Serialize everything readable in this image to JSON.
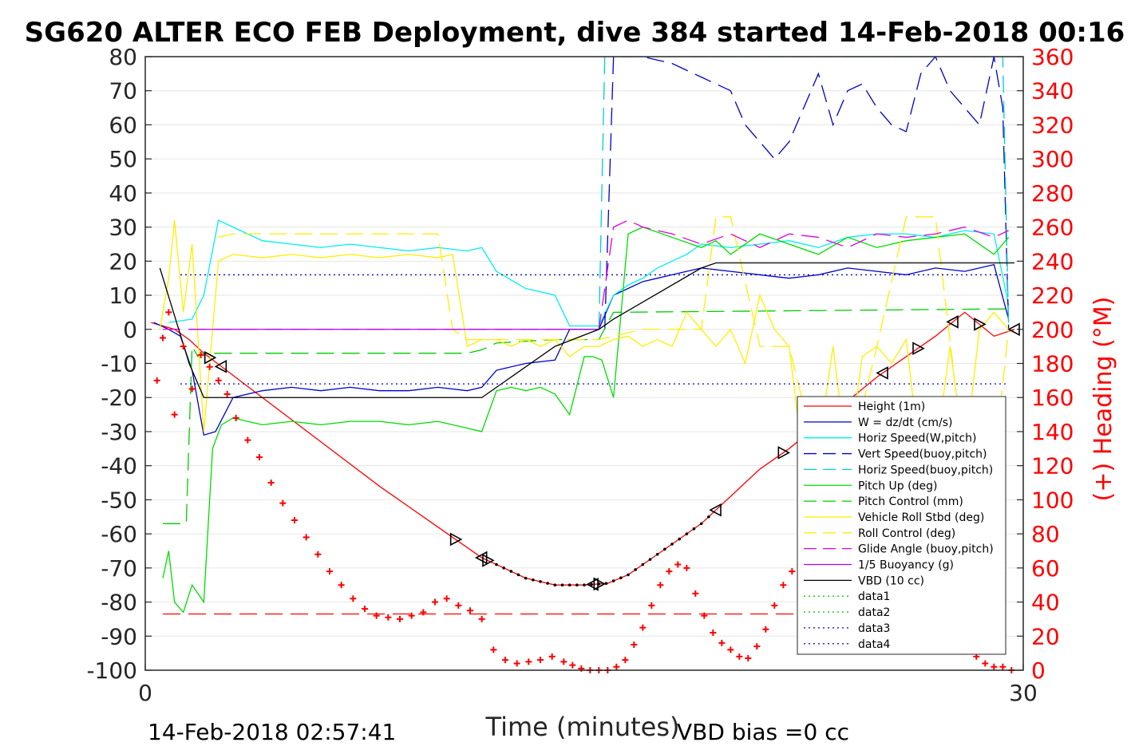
{
  "chart_data": {
    "type": "line",
    "title": "SG620 ALTER ECO FEB Deployment, dive 384 started 14-Feb-2018 00:16",
    "xlabel": "Time (minutes)",
    "ylabel_left": "",
    "ylabel_right": "(+) Heading (°M)",
    "xlim": [
      0,
      30
    ],
    "ylim_left": [
      -100,
      80
    ],
    "ylim_right": [
      0,
      360
    ],
    "x_ticks": [
      "0",
      "30"
    ],
    "y_left_ticks": [
      "80",
      "70",
      "60",
      "50",
      "40",
      "30",
      "20",
      "10",
      "0",
      "-10",
      "-20",
      "-30",
      "-40",
      "-50",
      "-60",
      "-70",
      "-80",
      "-90",
      "-100"
    ],
    "y_right_ticks": [
      "360",
      "340",
      "320",
      "300",
      "280",
      "260",
      "240",
      "220",
      "200",
      "180",
      "160",
      "140",
      "120",
      "100",
      "80",
      "60",
      "40",
      "20",
      "0"
    ],
    "grid": true,
    "legend_position": "lower-right",
    "footer_left": "14-Feb-2018 02:57:41",
    "footer_right": "VBD bias =0 cc",
    "series": [
      {
        "name": "Height (1m)",
        "color": "#ff0000",
        "style": "solid",
        "x": [
          0.2,
          1.0,
          1.5,
          2.0,
          4,
          6,
          8,
          10,
          11.5,
          13,
          14,
          15,
          15.8,
          16.5,
          17.5,
          19,
          20,
          21,
          22,
          23,
          24,
          25,
          26,
          27,
          28,
          29,
          29.7
        ],
        "y": [
          2,
          0,
          -3,
          -7,
          -20,
          -33,
          -46,
          -58,
          -67,
          -73,
          -75,
          -75,
          -74.5,
          -72,
          -66,
          -57,
          -49,
          -41,
          -35,
          -28,
          -21,
          -14,
          -8,
          -2,
          5,
          -2,
          0
        ]
      },
      {
        "name": "W = dz/dt (cm/s)",
        "color": "#0000cc",
        "style": "solid",
        "x": [
          0.3,
          0.8,
          1.2,
          1.6,
          2,
          2.4,
          3,
          4,
          5,
          6,
          7,
          8,
          9,
          10,
          11,
          11.5,
          12,
          13,
          14,
          14.5,
          15,
          15.5,
          16,
          16.5,
          17,
          17.5,
          18,
          18.5,
          19,
          20,
          21,
          22,
          23,
          24,
          25,
          26,
          27,
          28,
          29,
          29.5
        ],
        "y": [
          2,
          0,
          -2,
          -12,
          -31,
          -30,
          -20,
          -18,
          -17,
          -18,
          -17,
          -18,
          -18,
          -17,
          -18,
          -17,
          -12,
          -10,
          -9,
          0,
          0,
          0,
          10,
          12,
          14,
          15,
          16,
          17,
          18,
          17,
          16,
          15,
          16,
          18,
          17,
          16,
          18,
          17,
          19,
          3
        ]
      },
      {
        "name": "Horiz Speed(W,pitch)",
        "color": "#00eeee",
        "style": "solid",
        "x": [
          0.8,
          1.6,
          2,
          2.5,
          3,
          4,
          5,
          6,
          7,
          8,
          9,
          10,
          11,
          11.5,
          12,
          13,
          14,
          14.5,
          15,
          15.5,
          16,
          16.5,
          17,
          17.5,
          18,
          18.5,
          19,
          20,
          21,
          22,
          23,
          24,
          25,
          26,
          27,
          28,
          29,
          29.5
        ],
        "y": [
          2,
          3,
          10,
          32,
          30,
          26,
          25,
          24,
          25,
          24,
          23,
          24,
          23,
          24,
          17,
          12,
          10,
          1,
          1,
          1,
          10,
          13,
          15,
          18,
          20,
          22,
          25,
          24,
          25,
          26,
          24,
          27,
          28,
          28,
          27,
          29,
          28,
          7
        ]
      },
      {
        "name": "Vert Speed(buoy,pitch)",
        "color": "#0000cc",
        "style": "dashed",
        "x": [
          15.7,
          16,
          16.5,
          17,
          18,
          19,
          20,
          20.5,
          21,
          21.5,
          22,
          22.5,
          23,
          23.5,
          24,
          24.5,
          25,
          25.5,
          26,
          26.5,
          27,
          27.5,
          28,
          28.5,
          29,
          29.3,
          29.5
        ],
        "y": [
          0,
          80,
          80,
          80,
          78,
          74,
          70,
          60,
          55,
          50,
          55,
          65,
          75,
          60,
          70,
          72,
          65,
          60,
          58,
          75,
          80,
          70,
          65,
          60,
          80,
          65,
          0
        ]
      },
      {
        "name": "Horiz Speed(buoy,pitch)",
        "color": "#00cccc",
        "style": "dashed",
        "x": [
          15.5,
          15.7,
          16,
          29.3,
          29.5
        ],
        "y": [
          0,
          80,
          80,
          80,
          0
        ]
      },
      {
        "name": "Pitch Up (deg)",
        "color": "#00dd00",
        "style": "solid",
        "x": [
          0.6,
          0.8,
          1,
          1.3,
          1.6,
          2,
          2.3,
          2.6,
          3,
          4,
          5,
          6,
          7,
          8,
          9,
          10,
          11,
          11.5,
          12,
          12.5,
          13,
          13.5,
          14,
          14.5,
          15,
          15.3,
          15.6,
          16,
          16.5,
          17,
          18,
          19,
          19.5,
          20,
          21,
          22,
          23,
          24,
          25,
          26,
          27,
          28,
          29,
          29.5
        ],
        "y": [
          -73,
          -65,
          -80,
          -83,
          -75,
          -80,
          -35,
          -28,
          -26,
          -28,
          -27,
          -28,
          -27,
          -27,
          -28,
          -27,
          -29,
          -30,
          -18,
          -17,
          -18,
          -17,
          -19,
          -25,
          -8,
          -8,
          -9,
          -20,
          28,
          30,
          27,
          24,
          26,
          22,
          28,
          25,
          22,
          27,
          24,
          26,
          27,
          28,
          22,
          27
        ]
      },
      {
        "name": "Pitch Control (mm)",
        "color": "#00cc00",
        "style": "dashed",
        "x": [
          0.6,
          1.4,
          1.6,
          1.8,
          2,
          2.2,
          5,
          7,
          10,
          11,
          11.5,
          12,
          14,
          15.5,
          16,
          29.5
        ],
        "y": [
          -57,
          -57,
          -5,
          -8,
          -7,
          -7,
          -7,
          -7,
          -7,
          -7,
          -6,
          -4,
          -3,
          -3,
          5,
          6
        ]
      },
      {
        "name": "Vehicle Roll Stbd (deg)",
        "color": "#ffee00",
        "style": "solid",
        "x": [
          0.5,
          0.8,
          1,
          1.3,
          1.6,
          2,
          2.5,
          3,
          4,
          5,
          6,
          7,
          8,
          9,
          10,
          10.5,
          11,
          11.5,
          12,
          12.5,
          13,
          13.5,
          14,
          14.5,
          15,
          15.5,
          16,
          16.5,
          17,
          17.5,
          18,
          18.5,
          19,
          19.5,
          20,
          20.5,
          21,
          21.5,
          22,
          22.5,
          23,
          23.5,
          24,
          24.5,
          25,
          25.5,
          26,
          26.5,
          27,
          27.5,
          28,
          28.5,
          29,
          29.5
        ],
        "y": [
          0,
          15,
          32,
          5,
          25,
          -30,
          20,
          22,
          21,
          22,
          21,
          22,
          21,
          22,
          21,
          22,
          -5,
          -3,
          -3,
          -5,
          -3,
          -5,
          -3,
          -8,
          -5,
          -5,
          -3,
          -2,
          -5,
          -3,
          -5,
          5,
          0,
          -5,
          0,
          -10,
          10,
          0,
          -5,
          -40,
          -35,
          -5,
          -40,
          -8,
          -5,
          -10,
          -3,
          -40,
          -37,
          -5,
          -38,
          0,
          5,
          0
        ]
      },
      {
        "name": "Roll Control (deg)",
        "color": "#ffee00",
        "style": "dashed",
        "x": [
          2.5,
          3,
          4,
          5,
          6,
          7,
          8,
          9,
          10,
          10.5,
          11,
          12,
          13,
          14,
          15,
          15.5,
          16,
          17,
          18,
          19,
          19.5,
          20,
          21,
          22,
          23,
          24,
          25,
          26,
          27,
          28,
          29,
          29.5
        ],
        "y": [
          27,
          28,
          28,
          28,
          28,
          28,
          28,
          28,
          28,
          0,
          -3,
          -3,
          -3,
          -3,
          -3,
          -3,
          -2,
          0,
          0,
          0,
          33,
          33,
          -5,
          -5,
          -40,
          -40,
          -5,
          33,
          33,
          -40,
          -40,
          0
        ]
      },
      {
        "name": "Glide Angle (buoy,pitch)",
        "color": "#dd00dd",
        "style": "dashed",
        "x": [
          0.6,
          1.5,
          2,
          5,
          10,
          15,
          15.5,
          16,
          16.5,
          17,
          18,
          19,
          20,
          21,
          22,
          23,
          24,
          25,
          26,
          27,
          28,
          29,
          29.5
        ],
        "y": [
          0,
          0,
          0,
          0,
          0,
          0,
          0,
          30,
          32,
          30,
          28,
          25,
          28,
          24,
          28,
          27,
          24,
          28,
          27,
          28,
          30,
          27,
          29
        ]
      },
      {
        "name": "1/5 Buoyancy (g)",
        "color": "#aa00ff",
        "style": "solid",
        "x": [
          1.5,
          5,
          10,
          15,
          15.5
        ],
        "y": [
          0,
          0,
          0,
          0,
          0
        ]
      },
      {
        "name": "VBD (10 cc)",
        "color": "#000000",
        "style": "solid",
        "x": [
          0.5,
          1.5,
          2,
          10,
          11.5,
          14,
          15.5,
          16,
          19,
          19.5,
          29.7
        ],
        "y": [
          18,
          -10,
          -20,
          -20,
          -20,
          -5,
          0,
          3,
          18,
          19.5,
          19.5
        ]
      },
      {
        "name": "data1",
        "color": "#00cc00",
        "style": "dotted",
        "x": [],
        "y": []
      },
      {
        "name": "data2",
        "color": "#00cc00",
        "style": "dotted",
        "x": [],
        "y": []
      },
      {
        "name": "data3",
        "color": "#0000cc",
        "style": "dotted",
        "x": [
          1.2,
          29.5
        ],
        "y": [
          16,
          16
        ]
      },
      {
        "name": "data4",
        "color": "#0000cc",
        "style": "dotted",
        "x": [
          1.2,
          29.5
        ],
        "y": [
          -16,
          -16
        ]
      }
    ],
    "red_dashed_ref": {
      "color": "#ff0000",
      "axis": "right",
      "x": [
        0.6,
        29.3
      ],
      "y": [
        33,
        33
      ]
    },
    "heading": {
      "color": "#ff0000",
      "axis": "right",
      "x": [
        0.4,
        0.6,
        0.8,
        1.0,
        1.3,
        1.6,
        1.9,
        2.2,
        2.5,
        2.8,
        3.1,
        3.5,
        3.9,
        4.3,
        4.7,
        5.1,
        5.5,
        5.9,
        6.3,
        6.7,
        7.1,
        7.5,
        7.9,
        8.3,
        8.7,
        9.1,
        9.5,
        9.9,
        10.3,
        10.7,
        11.1,
        11.5,
        11.9,
        12.3,
        12.7,
        13.1,
        13.5,
        13.9,
        14.3,
        14.6,
        14.9,
        15.2,
        15.5,
        15.8,
        16.1,
        16.4,
        16.7,
        17.0,
        17.3,
        17.6,
        17.9,
        18.2,
        18.5,
        18.8,
        19.1,
        19.4,
        19.7,
        20.0,
        20.3,
        20.6,
        20.9,
        21.2,
        21.5,
        21.8,
        22.1,
        22.4,
        22.7,
        23.0,
        23.3,
        23.6,
        23.9,
        24.2,
        24.5,
        24.8,
        25.1,
        25.4,
        25.7,
        26.0,
        26.3,
        26.6,
        26.9,
        27.2,
        27.5,
        27.8,
        28.1,
        28.4,
        28.7,
        29.0,
        29.3,
        29.6
      ],
      "y": [
        170,
        195,
        210,
        150,
        190,
        165,
        185,
        178,
        170,
        162,
        148,
        135,
        125,
        110,
        98,
        88,
        78,
        68,
        58,
        50,
        42,
        36,
        32,
        31,
        30,
        32,
        34,
        40,
        42,
        38,
        35,
        30,
        12,
        6,
        4,
        5,
        6,
        8,
        5,
        3,
        1,
        0,
        0,
        0,
        2,
        6,
        15,
        25,
        38,
        50,
        58,
        62,
        60,
        45,
        32,
        22,
        16,
        12,
        8,
        7,
        14,
        24,
        38,
        50,
        58,
        60,
        55,
        40,
        28,
        18,
        20,
        28,
        38,
        48,
        58,
        62,
        56,
        50,
        45,
        38,
        24,
        22,
        18,
        16,
        12,
        8,
        4,
        2,
        2,
        0
      ]
    }
  }
}
